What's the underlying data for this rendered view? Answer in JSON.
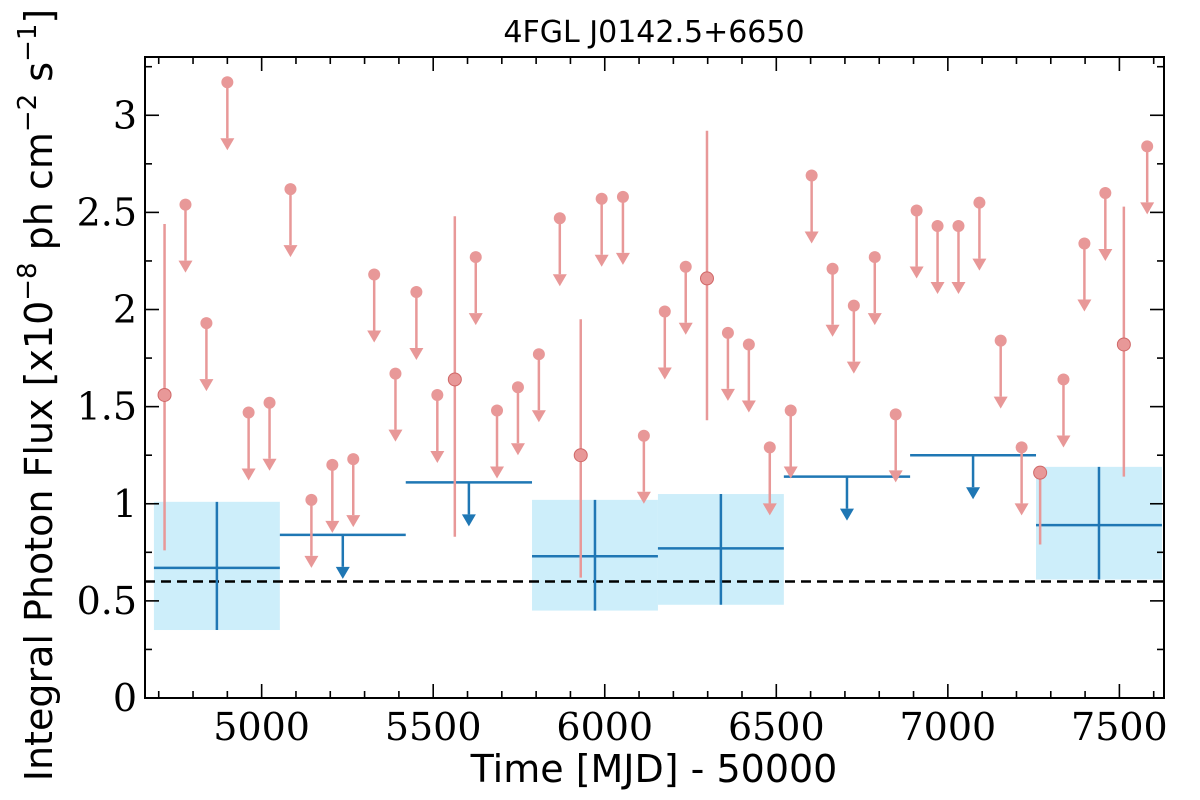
{
  "chart_data": {
    "type": "scatter",
    "title": "4FGL J0142.5+6650",
    "xlabel": "Time [MJD] - 50000",
    "ylabel": "Integral Photon Flux [x10",
    "ylabel_exp1": "−8",
    "ylabel_mid": " ph cm",
    "ylabel_exp2": "−2",
    "ylabel_end": " s",
    "ylabel_exp3": "−1",
    "ylabel_close": "]",
    "xlim": [
      4660,
      7630
    ],
    "ylim": [
      0,
      3.3
    ],
    "x_ticks": [
      5000,
      5500,
      6000,
      6500,
      7000,
      7500
    ],
    "y_ticks": [
      0,
      0.5,
      1,
      1.5,
      2,
      2.5,
      3
    ],
    "y_tick_labels": [
      "0",
      "0.5",
      "1",
      "1.5",
      "2",
      "2.5",
      "3"
    ],
    "reference_line": {
      "y": 0.6,
      "style": "dashed",
      "color": "#000000"
    },
    "colors": {
      "fine": "#e89898",
      "coarse": "#1f77b4",
      "band": "#cdeefa"
    },
    "fine_bins": {
      "detections": [
        {
          "x": 4717,
          "y": 1.56,
          "ylo": 0.76,
          "yhi": 2.44
        },
        {
          "x": 5563,
          "y": 1.64,
          "ylo": 0.83,
          "yhi": 2.48
        },
        {
          "x": 5930,
          "y": 1.25,
          "ylo": 0.62,
          "yhi": 1.95
        },
        {
          "x": 6298,
          "y": 2.16,
          "ylo": 1.43,
          "yhi": 2.92
        },
        {
          "x": 7269,
          "y": 1.16,
          "ylo": 0.79,
          "yhi": 1.17
        },
        {
          "x": 7513,
          "y": 1.82,
          "ylo": 1.14,
          "yhi": 2.53
        }
      ],
      "upper_limits": [
        {
          "x": 4778,
          "y": 2.54
        },
        {
          "x": 4839,
          "y": 1.93
        },
        {
          "x": 4900,
          "y": 3.17
        },
        {
          "x": 4962,
          "y": 1.47
        },
        {
          "x": 5023,
          "y": 1.52
        },
        {
          "x": 5084,
          "y": 2.62
        },
        {
          "x": 5145,
          "y": 1.02
        },
        {
          "x": 5206,
          "y": 1.2
        },
        {
          "x": 5267,
          "y": 1.23
        },
        {
          "x": 5328,
          "y": 2.18
        },
        {
          "x": 5390,
          "y": 1.67
        },
        {
          "x": 5451,
          "y": 2.09
        },
        {
          "x": 5512,
          "y": 1.56
        },
        {
          "x": 5624,
          "y": 2.27
        },
        {
          "x": 5686,
          "y": 1.48
        },
        {
          "x": 5747,
          "y": 1.6
        },
        {
          "x": 5808,
          "y": 1.77
        },
        {
          "x": 5869,
          "y": 2.47
        },
        {
          "x": 5991,
          "y": 2.57
        },
        {
          "x": 6053,
          "y": 2.58
        },
        {
          "x": 6114,
          "y": 1.35
        },
        {
          "x": 6175,
          "y": 1.99
        },
        {
          "x": 6236,
          "y": 2.22
        },
        {
          "x": 6359,
          "y": 1.88
        },
        {
          "x": 6420,
          "y": 1.82
        },
        {
          "x": 6481,
          "y": 1.29
        },
        {
          "x": 6542,
          "y": 1.48
        },
        {
          "x": 6603,
          "y": 2.69
        },
        {
          "x": 6664,
          "y": 2.21
        },
        {
          "x": 6726,
          "y": 2.02
        },
        {
          "x": 6787,
          "y": 2.27
        },
        {
          "x": 6848,
          "y": 1.46
        },
        {
          "x": 6909,
          "y": 2.51
        },
        {
          "x": 6970,
          "y": 2.43
        },
        {
          "x": 7031,
          "y": 2.43
        },
        {
          "x": 7092,
          "y": 2.55
        },
        {
          "x": 7154,
          "y": 1.84
        },
        {
          "x": 7215,
          "y": 1.29
        },
        {
          "x": 7337,
          "y": 1.64
        },
        {
          "x": 7398,
          "y": 2.34
        },
        {
          "x": 7459,
          "y": 2.6
        },
        {
          "x": 7581,
          "y": 2.84
        }
      ]
    },
    "coarse_bins": {
      "detections": [
        {
          "xmin": 4686,
          "xmax": 5053,
          "y": 0.67,
          "ylo": 0.35,
          "yhi": 1.01,
          "band_lo": 0.35,
          "band_hi": 1.01
        },
        {
          "xmin": 5788,
          "xmax": 6155,
          "y": 0.73,
          "ylo": 0.45,
          "yhi": 1.02,
          "band_lo": 0.45,
          "band_hi": 1.02
        },
        {
          "xmin": 6155,
          "xmax": 6522,
          "y": 0.77,
          "ylo": 0.48,
          "yhi": 1.05,
          "band_lo": 0.48,
          "band_hi": 1.05
        },
        {
          "xmin": 7257,
          "xmax": 7624,
          "y": 0.89,
          "ylo": 0.61,
          "yhi": 1.19,
          "band_lo": 0.61,
          "band_hi": 1.19
        }
      ],
      "upper_limits": [
        {
          "xmin": 5053,
          "xmax": 5420,
          "y": 0.84
        },
        {
          "xmin": 5420,
          "xmax": 5788,
          "y": 1.11
        },
        {
          "xmin": 6522,
          "xmax": 6890,
          "y": 1.14
        },
        {
          "xmin": 6890,
          "xmax": 7257,
          "y": 1.25
        }
      ]
    }
  }
}
